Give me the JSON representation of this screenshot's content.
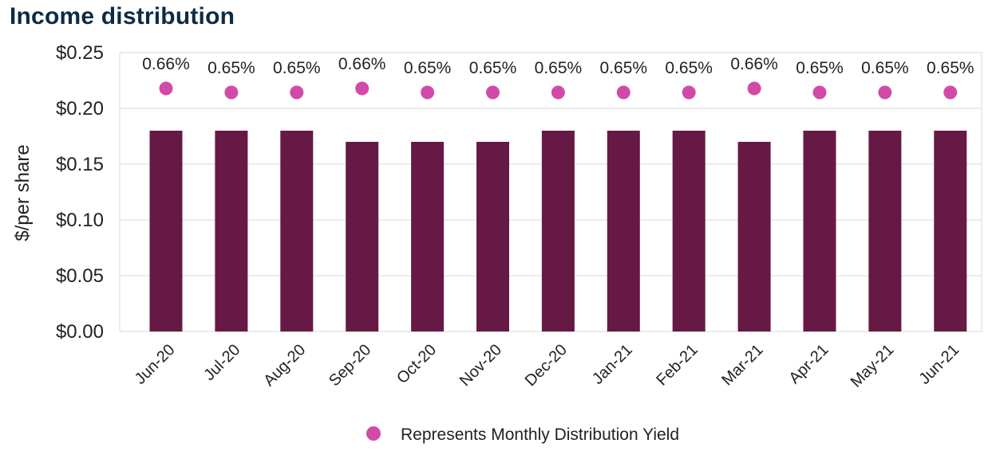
{
  "title": "Income distribution",
  "colors": {
    "bar": "#661944",
    "dot": "#d24aa8",
    "title": "#0d2b45",
    "grid": "#d9d9d9"
  },
  "chart_data": {
    "type": "bar",
    "title": "Income distribution",
    "xlabel": "",
    "ylabel": "$/per share",
    "ylim": [
      0,
      0.25
    ],
    "yticks": [
      "$0.00",
      "$0.05",
      "$0.10",
      "$0.15",
      "$0.20",
      "$0.25"
    ],
    "categories": [
      "Jun-20",
      "Jul-20",
      "Aug-20",
      "Sep-20",
      "Oct-20",
      "Nov-20",
      "Dec-20",
      "Jan-21",
      "Feb-21",
      "Mar-21",
      "Apr-21",
      "May-21",
      "Jun-21"
    ],
    "series": [
      {
        "type": "bar",
        "values": [
          0.18,
          0.18,
          0.18,
          0.17,
          0.17,
          0.17,
          0.18,
          0.18,
          0.18,
          0.17,
          0.18,
          0.18,
          0.18
        ]
      },
      {
        "name": "Represents Monthly Distribution Yield",
        "type": "scatter",
        "values": [
          0.66,
          0.65,
          0.65,
          0.66,
          0.65,
          0.65,
          0.65,
          0.65,
          0.65,
          0.66,
          0.65,
          0.65,
          0.65
        ],
        "labels": [
          "0.66%",
          "0.65%",
          "0.65%",
          "0.66%",
          "0.65%",
          "0.65%",
          "0.65%",
          "0.65%",
          "0.65%",
          "0.66%",
          "0.65%",
          "0.65%",
          "0.65%"
        ]
      }
    ],
    "grid": true,
    "legend": "bottom-center"
  }
}
